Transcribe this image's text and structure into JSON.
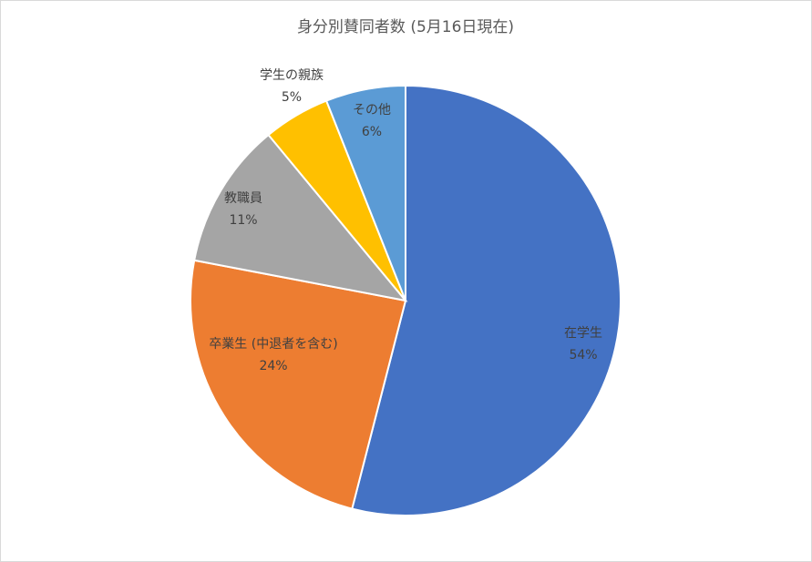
{
  "chart_data": {
    "type": "pie",
    "title": "身分別賛同者数 (5月16日現在)",
    "categories": [
      "在学生",
      "卒業生 (中退者を含む)",
      "教職員",
      "学生の親族",
      "その他"
    ],
    "values": [
      54,
      24,
      11,
      5,
      6
    ],
    "value_labels": [
      "54%",
      "24%",
      "11%",
      "5%",
      "6%"
    ],
    "colors": [
      "#4472c4",
      "#ed7d31",
      "#a5a5a5",
      "#ffc000",
      "#5b9bd5"
    ]
  }
}
